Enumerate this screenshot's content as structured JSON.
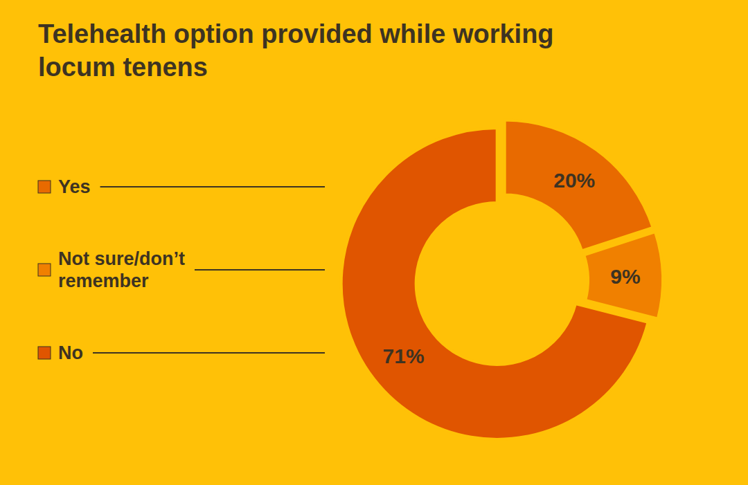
{
  "chart_data": {
    "type": "donut",
    "title": "Telehealth option provided while working\nlocum tenens",
    "categories": [
      "Yes",
      "Not sure/don’t\nremember",
      "No"
    ],
    "values": [
      20,
      9,
      71
    ],
    "value_labels": [
      "20%",
      "9%",
      "71%"
    ],
    "colors": [
      "#E86A00",
      "#F08000",
      "#E05500"
    ],
    "data_labels": true,
    "legend": "left"
  }
}
